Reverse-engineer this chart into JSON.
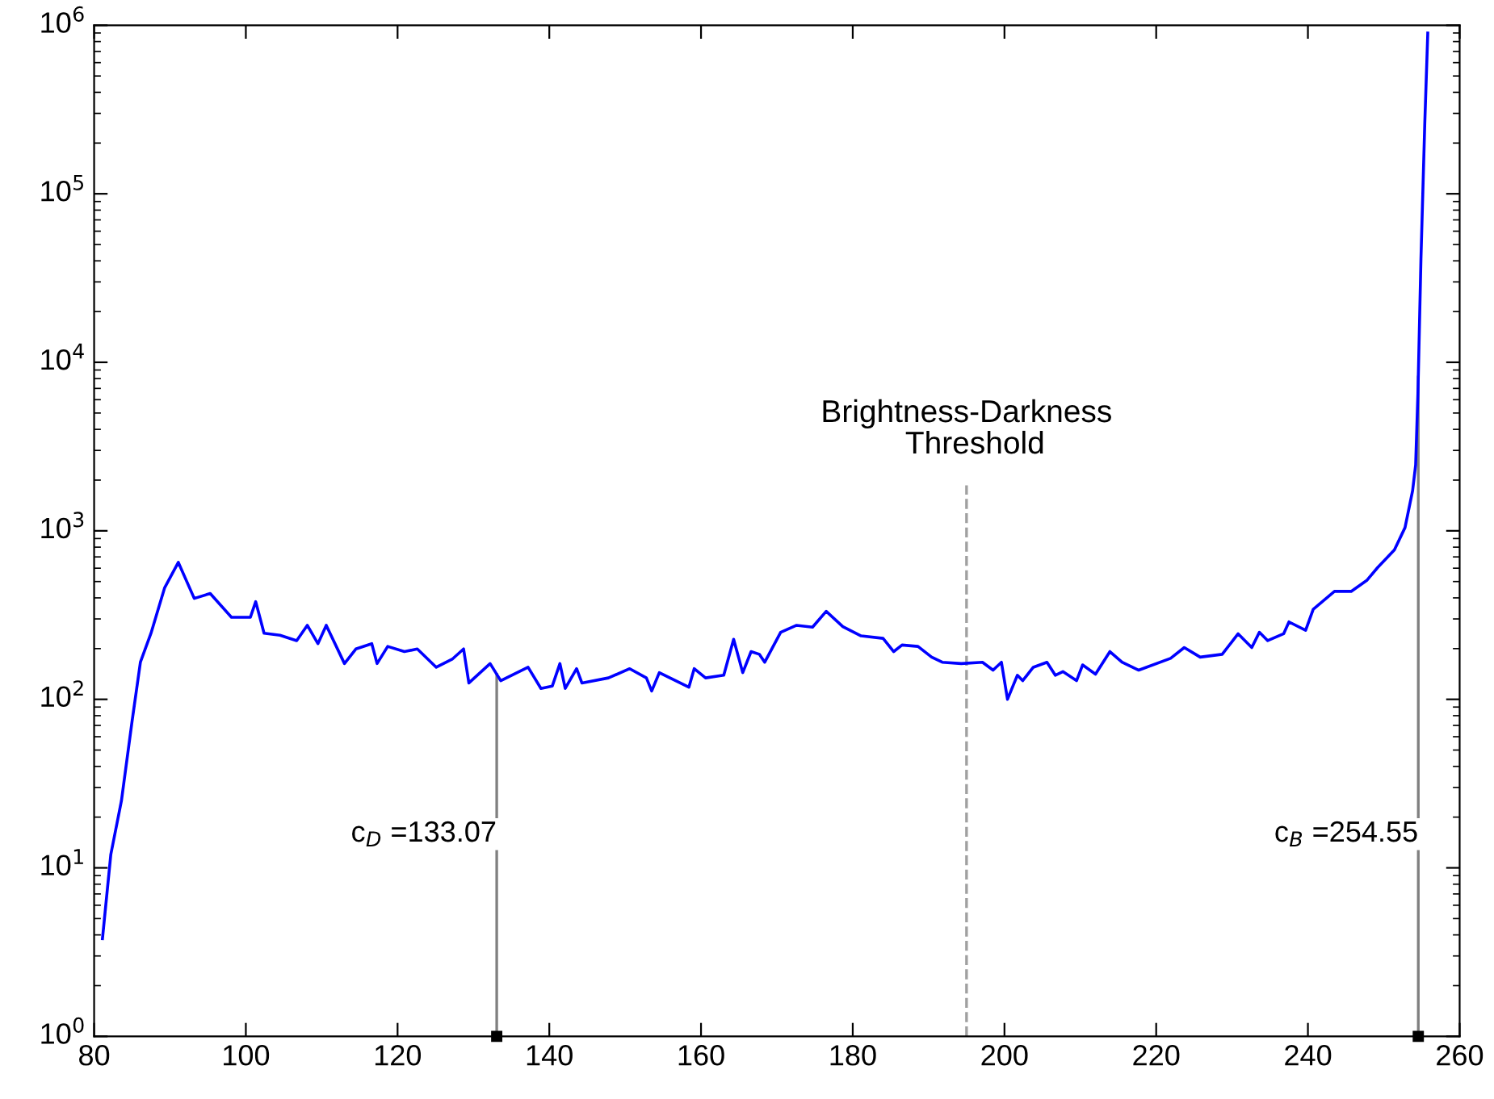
{
  "chart_data": {
    "type": "line",
    "log": "y",
    "grid": false,
    "marker": "none",
    "line_style": "solid",
    "xlim": [
      80,
      260
    ],
    "xticks": [
      80,
      100,
      120,
      140,
      160,
      180,
      200,
      220,
      240,
      260
    ],
    "ylim": [
      1,
      1000000
    ],
    "yticks": [
      {
        "value": 1,
        "label": "10$^{0}$"
      },
      {
        "value": 10,
        "label": "10$^{1}$"
      },
      {
        "value": 100,
        "label": "10$^{2}$"
      },
      {
        "value": 1000,
        "label": "10$^{3}$"
      },
      {
        "value": 10000,
        "label": "10$^{4}$"
      },
      {
        "value": 100000,
        "label": "10$^{5}$"
      },
      {
        "value": 1000000,
        "label": "10$^{6}$"
      }
    ],
    "series": [
      {
        "color": "#0000ff",
        "x": [
          81.1,
          82.2,
          83.6,
          85.0,
          86.1,
          87.5,
          89.3,
          91.1,
          93.2,
          95.3,
          98.1,
          100.6,
          101.3,
          102.4,
          104.5,
          106.7,
          108.1,
          109.5,
          110.6,
          113.0,
          114.5,
          116.6,
          117.3,
          118.7,
          120.9,
          122.6,
          125.1,
          127.2,
          128.7,
          129.4,
          132.2,
          133.6,
          137.2,
          138.9,
          140.4,
          141.4,
          142.1,
          143.6,
          144.3,
          147.8,
          150.6,
          152.8,
          153.5,
          154.5,
          158.4,
          159.1,
          160.6,
          163.0,
          164.3,
          165.5,
          166.6,
          167.7,
          168.4,
          170.5,
          172.6,
          174.7,
          176.5,
          178.7,
          181.1,
          184.0,
          185.4,
          186.5,
          188.6,
          190.4,
          191.8,
          194.3,
          197.1,
          198.5,
          199.6,
          200.4,
          201.7,
          202.4,
          203.8,
          205.6,
          206.7,
          207.7,
          209.5,
          210.3,
          212.0,
          213.9,
          215.5,
          217.7,
          221.9,
          223.7,
          225.8,
          228.7,
          230.8,
          232.6,
          233.6,
          234.7,
          236.8,
          237.5,
          239.7,
          240.7,
          243.5,
          245.7,
          247.8,
          249.2,
          251.4,
          252.8,
          253.8,
          254.2,
          254.5,
          254.9,
          255.4,
          255.8
        ],
        "values": [
          3.8,
          12,
          25,
          74,
          166,
          247,
          460,
          650,
          397,
          425,
          307,
          307,
          380,
          247,
          240,
          223,
          275,
          214,
          275,
          163,
          199,
          214,
          163,
          206,
          192,
          199,
          155,
          173,
          199,
          125,
          163,
          129,
          155,
          116,
          120,
          163,
          116,
          152,
          125,
          134,
          152,
          134,
          112,
          144,
          118,
          152,
          134,
          139,
          227,
          144,
          192,
          185,
          166,
          250,
          275,
          268,
          333,
          270,
          238,
          230,
          192,
          210,
          206,
          178,
          166,
          163,
          166,
          149,
          166,
          100,
          139,
          129,
          155,
          166,
          139,
          146,
          129,
          160,
          141,
          192,
          166,
          149,
          175,
          203,
          178,
          185,
          245,
          203,
          250,
          223,
          245,
          288,
          257,
          342,
          437,
          437,
          510,
          606,
          770,
          1045,
          1730,
          2460,
          6500,
          41000,
          257000,
          900000
        ]
      }
    ],
    "ref_lines": [
      {
        "axis": "x",
        "value": 133.07,
        "label": "c$_{D}$ =133.07",
        "color": "#808080",
        "line_style": "solid"
      },
      {
        "axis": "x",
        "value": 195,
        "label": "Brightness-Darkness\n  Threshold",
        "color": "#a0a0a0",
        "line_style": "dashed"
      },
      {
        "axis": "x",
        "value": 254.55,
        "label": "c$_{B}$ =254.55",
        "color": "#808080",
        "line_style": "solid"
      }
    ]
  }
}
